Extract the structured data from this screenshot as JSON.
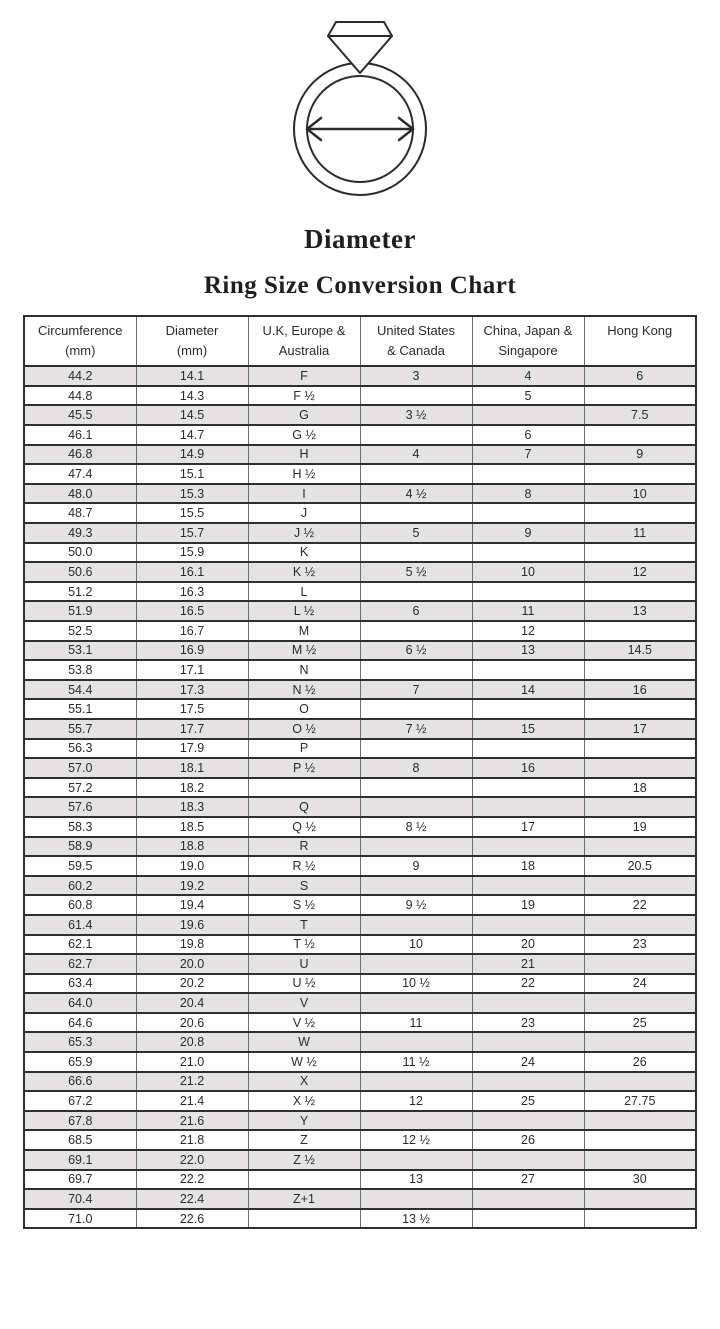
{
  "illustration": {
    "label": "Diameter"
  },
  "title": "Ring Size Conversion Chart",
  "colors": {
    "row_alt_bg": "#e4e2e2",
    "border_dark": "#2f2f2f",
    "border_light": "#6f6f6f",
    "line_art": "#2b2b2b",
    "text": "#2b2b2b"
  },
  "table": {
    "headers": [
      {
        "line1": "Circumference",
        "line2": "(mm)"
      },
      {
        "line1": "Diameter",
        "line2": "(mm)"
      },
      {
        "line1": "U.K, Europe &",
        "line2": "Australia"
      },
      {
        "line1": "United States",
        "line2": "& Canada"
      },
      {
        "line1": "China, Japan &",
        "line2": "Singapore"
      },
      {
        "line1": "Hong Kong",
        "line2": ""
      }
    ],
    "rows": [
      [
        "44.2",
        "14.1",
        "F",
        "3",
        "4",
        "6"
      ],
      [
        "44.8",
        "14.3",
        "F ½",
        "",
        "5",
        ""
      ],
      [
        "45.5",
        "14.5",
        "G",
        "3 ½",
        "",
        "7.5"
      ],
      [
        "46.1",
        "14.7",
        "G ½",
        "",
        "6",
        ""
      ],
      [
        "46.8",
        "14.9",
        "H",
        "4",
        "7",
        "9"
      ],
      [
        "47.4",
        "15.1",
        "H ½",
        "",
        "",
        ""
      ],
      [
        "48.0",
        "15.3",
        "I",
        "4 ½",
        "8",
        "10"
      ],
      [
        "48.7",
        "15.5",
        "J",
        "",
        "",
        ""
      ],
      [
        "49.3",
        "15.7",
        "J ½",
        "5",
        "9",
        "11"
      ],
      [
        "50.0",
        "15.9",
        "K",
        "",
        "",
        ""
      ],
      [
        "50.6",
        "16.1",
        "K ½",
        "5 ½",
        "10",
        "12"
      ],
      [
        "51.2",
        "16.3",
        "L",
        "",
        "",
        ""
      ],
      [
        "51.9",
        "16.5",
        "L ½",
        "6",
        "11",
        "13"
      ],
      [
        "52.5",
        "16.7",
        "M",
        "",
        "12",
        ""
      ],
      [
        "53.1",
        "16.9",
        "M ½",
        "6 ½",
        "13",
        "14.5"
      ],
      [
        "53.8",
        "17.1",
        "N",
        "",
        "",
        ""
      ],
      [
        "54.4",
        "17.3",
        "N ½",
        "7",
        "14",
        "16"
      ],
      [
        "55.1",
        "17.5",
        "O",
        "",
        "",
        ""
      ],
      [
        "55.7",
        "17.7",
        "O ½",
        "7 ½",
        "15",
        "17"
      ],
      [
        "56.3",
        "17.9",
        "P",
        "",
        "",
        ""
      ],
      [
        "57.0",
        "18.1",
        "P ½",
        "8",
        "16",
        ""
      ],
      [
        "57.2",
        "18.2",
        "",
        "",
        "",
        "18"
      ],
      [
        "57.6",
        "18.3",
        "Q",
        "",
        "",
        ""
      ],
      [
        "58.3",
        "18.5",
        "Q ½",
        "8 ½",
        "17",
        "19"
      ],
      [
        "58.9",
        "18.8",
        "R",
        "",
        "",
        ""
      ],
      [
        "59.5",
        "19.0",
        "R ½",
        "9",
        "18",
        "20.5"
      ],
      [
        "60.2",
        "19.2",
        "S",
        "",
        "",
        ""
      ],
      [
        "60.8",
        "19.4",
        "S ½",
        "9 ½",
        "19",
        "22"
      ],
      [
        "61.4",
        "19.6",
        "T",
        "",
        "",
        ""
      ],
      [
        "62.1",
        "19.8",
        "T ½",
        "10",
        "20",
        "23"
      ],
      [
        "62.7",
        "20.0",
        "U",
        "",
        "21",
        ""
      ],
      [
        "63.4",
        "20.2",
        "U ½",
        "10 ½",
        "22",
        "24"
      ],
      [
        "64.0",
        "20.4",
        "V",
        "",
        "",
        ""
      ],
      [
        "64.6",
        "20.6",
        "V ½",
        "11",
        "23",
        "25"
      ],
      [
        "65.3",
        "20.8",
        "W",
        "",
        "",
        ""
      ],
      [
        "65.9",
        "21.0",
        "W ½",
        "11 ½",
        "24",
        "26"
      ],
      [
        "66.6",
        "21.2",
        "X",
        "",
        "",
        ""
      ],
      [
        "67.2",
        "21.4",
        "X ½",
        "12",
        "25",
        "27.75"
      ],
      [
        "67.8",
        "21.6",
        "Y",
        "",
        "",
        ""
      ],
      [
        "68.5",
        "21.8",
        "Z",
        "12 ½",
        "26",
        ""
      ],
      [
        "69.1",
        "22.0",
        "Z ½",
        "",
        "",
        ""
      ],
      [
        "69.7",
        "22.2",
        "",
        "13",
        "27",
        "30"
      ],
      [
        "70.4",
        "22.4",
        "Z+1",
        "",
        "",
        ""
      ],
      [
        "71.0",
        "22.6",
        "",
        "13 ½",
        "",
        ""
      ]
    ]
  }
}
